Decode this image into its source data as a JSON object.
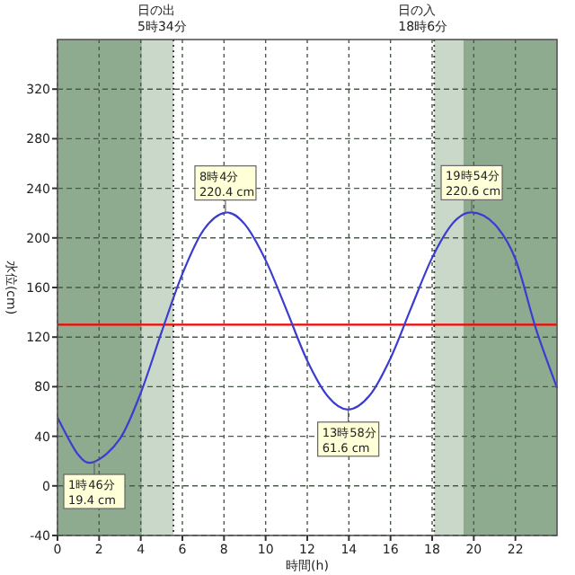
{
  "chart_data": {
    "type": "line",
    "xlabel": "時間(h)",
    "ylabel": "水位(cm)",
    "x": [
      0,
      1,
      1.77,
      3,
      4,
      5,
      6,
      7,
      8.07,
      9,
      10,
      11,
      12,
      13,
      13.97,
      15,
      16,
      17,
      18,
      19,
      19.9,
      21,
      22,
      23,
      24
    ],
    "series": [
      {
        "color": "#3c3cd0",
        "values": [
          55,
          25,
          19.4,
          38,
          75,
          124,
          171,
          206,
          220.4,
          211,
          182,
          142,
          101,
          72,
          61.6,
          73,
          103,
          144,
          184,
          212,
          220.6,
          211,
          183,
          126,
          79
        ]
      }
    ],
    "xlim": [
      0,
      24
    ],
    "ylim": [
      -40,
      360
    ],
    "xticks": [
      0,
      2,
      4,
      6,
      8,
      10,
      12,
      14,
      16,
      18,
      20,
      22
    ],
    "yticks": [
      -40,
      0,
      40,
      80,
      120,
      160,
      200,
      240,
      280,
      320
    ],
    "grid": true,
    "ref_lines": [
      {
        "axis": "y",
        "value": 130,
        "color": "#ff0000"
      },
      {
        "axis": "x",
        "value": 5.57,
        "label": "日の出\n5時34分",
        "color": "#333333",
        "line_style": "dotted"
      },
      {
        "axis": "x",
        "value": 18.1,
        "label": "日の入\n18時6分",
        "color": "#333333",
        "line_style": "dotted"
      }
    ],
    "bands": [
      {
        "axis": "x",
        "from": 0,
        "to": 4.05,
        "color": "#8fab8f"
      },
      {
        "axis": "x",
        "from": 4.05,
        "to": 5.57,
        "color": "#c9d8c9"
      },
      {
        "axis": "x",
        "from": 18.1,
        "to": 19.5,
        "color": "#c9d8c9"
      },
      {
        "axis": "x",
        "from": 19.5,
        "to": 24,
        "color": "#8fab8f"
      }
    ],
    "annotations": [
      {
        "text": "1時46分\n19.4 cm",
        "x": 1.77,
        "y": 19.4
      },
      {
        "text": "8時4分\n220.4 cm",
        "x": 8.07,
        "y": 220.4
      },
      {
        "text": "13時58分\n61.6 cm",
        "x": 13.97,
        "y": 61.6
      },
      {
        "text": "19時54分\n220.6 cm",
        "x": 19.9,
        "y": 220.6
      }
    ]
  }
}
